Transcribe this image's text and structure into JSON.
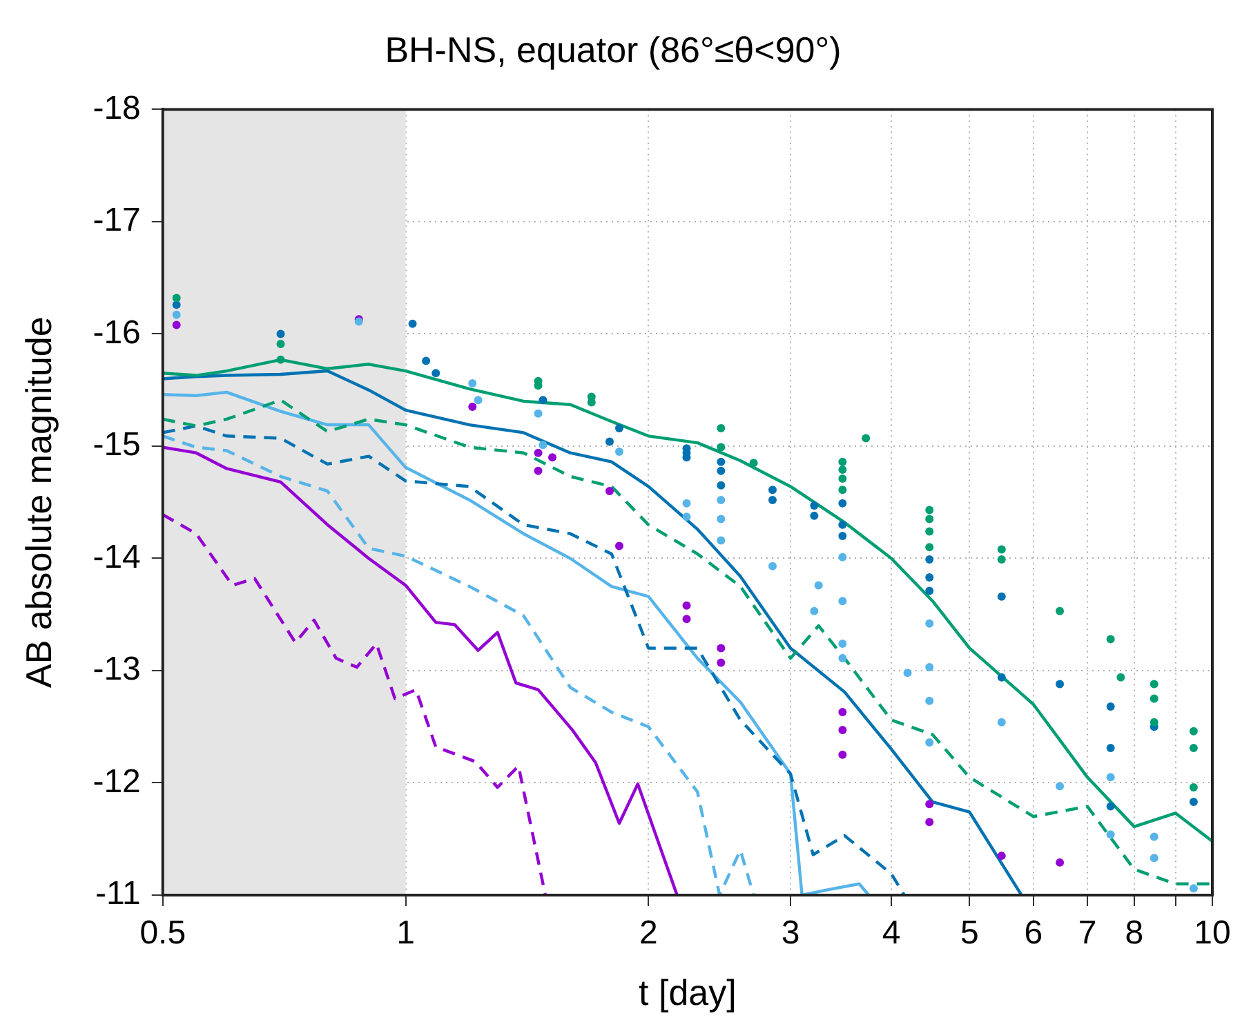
{
  "chart_data": {
    "type": "line",
    "title": "BH-NS, equator (86°≤θ<90°)",
    "xlabel": "t [day]",
    "ylabel": "AB absolute magnitude",
    "log": "x",
    "grid": true,
    "legend": false,
    "xlim": [
      0.5,
      10
    ],
    "xticks": [
      0.5,
      1,
      2,
      3,
      4,
      5,
      6,
      7,
      8,
      {
        "value": 9,
        "label": null
      },
      10
    ],
    "ylim": [
      -11,
      -18
    ],
    "yticks": [
      -18,
      -17,
      -16,
      -15,
      -14,
      -13,
      -12,
      -11
    ],
    "bands": [
      {
        "axis": "x",
        "from": 0.5,
        "to": 1,
        "color": "#e5e5e5"
      }
    ],
    "series": [
      {
        "line_style": "solid",
        "color": "#009e73",
        "x": [
          0.5,
          0.55,
          0.6,
          0.7,
          0.8,
          0.9,
          1,
          1.2,
          1.4,
          1.6,
          1.8,
          2,
          2.3,
          2.6,
          3,
          3.5,
          4,
          4.5,
          5,
          6,
          7,
          8,
          9,
          10
        ],
        "values": [
          -15.65,
          -15.63,
          -15.67,
          -15.77,
          -15.69,
          -15.73,
          -15.67,
          -15.51,
          -15.4,
          -15.37,
          -15.22,
          -15.09,
          -15.03,
          -14.87,
          -14.64,
          -14.32,
          -14.0,
          -13.62,
          -13.2,
          -12.7,
          -12.05,
          -11.61,
          -11.73,
          -11.48
        ]
      },
      {
        "line_style": "dashed",
        "color": "#009e73",
        "x": [
          0.5,
          0.55,
          0.6,
          0.7,
          0.8,
          0.9,
          1,
          1.2,
          1.4,
          1.6,
          1.8,
          2,
          2.3,
          2.6,
          3,
          3.25,
          3.5,
          4,
          4.5,
          5,
          6,
          7,
          8,
          9,
          10
        ],
        "values": [
          -15.24,
          -15.18,
          -15.24,
          -15.41,
          -15.13,
          -15.24,
          -15.19,
          -14.99,
          -14.94,
          -14.73,
          -14.64,
          -14.3,
          -14.04,
          -13.75,
          -13.11,
          -13.4,
          -13.11,
          -12.56,
          -12.43,
          -12.05,
          -11.7,
          -11.79,
          -11.23,
          -11.1,
          -11.1
        ]
      },
      {
        "line_style": "solid",
        "color": "#0072b2",
        "x": [
          0.5,
          0.55,
          0.6,
          0.7,
          0.8,
          0.9,
          1,
          1.2,
          1.4,
          1.6,
          1.8,
          2,
          2.3,
          2.6,
          3,
          3.5,
          4,
          4.5,
          5,
          5.8
        ],
        "values": [
          -15.6,
          -15.62,
          -15.63,
          -15.64,
          -15.67,
          -15.5,
          -15.32,
          -15.19,
          -15.12,
          -14.94,
          -14.86,
          -14.64,
          -14.26,
          -13.84,
          -13.2,
          -12.81,
          -12.3,
          -11.83,
          -11.74,
          -11.0
        ]
      },
      {
        "line_style": "dashed",
        "color": "#0072b2",
        "x": [
          0.5,
          0.55,
          0.6,
          0.7,
          0.8,
          0.9,
          1,
          1.2,
          1.4,
          1.6,
          1.8,
          2,
          2.3,
          2.6,
          3,
          3.2,
          3.5,
          4,
          4.15
        ],
        "values": [
          -15.12,
          -15.18,
          -15.09,
          -15.07,
          -14.84,
          -14.91,
          -14.69,
          -14.64,
          -14.3,
          -14.22,
          -14.04,
          -13.2,
          -13.2,
          -12.56,
          -12.08,
          -11.36,
          -11.53,
          -11.19,
          -11.0
        ]
      },
      {
        "line_style": "solid",
        "color": "#56b4e9",
        "x": [
          0.5,
          0.55,
          0.6,
          0.7,
          0.8,
          0.9,
          1,
          1.2,
          1.4,
          1.6,
          1.8,
          2,
          2.3,
          2.6,
          3,
          3.1,
          3.35,
          3.65,
          3.75
        ],
        "values": [
          -15.46,
          -15.45,
          -15.48,
          -15.31,
          -15.19,
          -15.19,
          -14.81,
          -14.52,
          -14.22,
          -14.0,
          -13.75,
          -13.66,
          -13.11,
          -12.72,
          -12.08,
          -11.0,
          -11.05,
          -11.1,
          -11.0
        ]
      },
      {
        "line_style": "dashed",
        "color": "#56b4e9",
        "x": [
          0.5,
          0.55,
          0.6,
          0.7,
          0.8,
          0.9,
          1,
          1.2,
          1.4,
          1.6,
          1.8,
          2,
          2.3,
          2.45,
          2.6,
          2.7
        ],
        "values": [
          -15.09,
          -14.99,
          -14.96,
          -14.73,
          -14.6,
          -14.09,
          -14.02,
          -13.75,
          -13.49,
          -12.85,
          -12.63,
          -12.5,
          -11.92,
          -11.0,
          -11.4,
          -11.0
        ]
      },
      {
        "line_style": "solid",
        "color": "#9400d3",
        "x": [
          0.5,
          0.55,
          0.6,
          0.7,
          0.8,
          0.9,
          1.0,
          1.09,
          1.15,
          1.23,
          1.3,
          1.37,
          1.46,
          1.61,
          1.72,
          1.84,
          1.94,
          2.17
        ],
        "values": [
          -14.99,
          -14.94,
          -14.8,
          -14.68,
          -14.3,
          -14.0,
          -13.76,
          -13.43,
          -13.41,
          -13.18,
          -13.34,
          -12.89,
          -12.83,
          -12.47,
          -12.18,
          -11.64,
          -11.99,
          -11.0
        ]
      },
      {
        "line_style": "dashed",
        "color": "#9400d3",
        "x": [
          0.5,
          0.55,
          0.61,
          0.65,
          0.73,
          0.77,
          0.82,
          0.87,
          0.92,
          0.97,
          1.03,
          1.09,
          1.22,
          1.3,
          1.38,
          1.49
        ],
        "values": [
          -14.39,
          -14.22,
          -13.76,
          -13.82,
          -13.25,
          -13.45,
          -13.11,
          -13.03,
          -13.24,
          -12.75,
          -12.83,
          -12.32,
          -12.19,
          -11.96,
          -12.15,
          -11.0
        ]
      },
      {
        "type": "scatter",
        "marker": "circle",
        "color": "#009e73",
        "x": [
          0.52,
          0.7,
          0.7,
          1.46,
          1.46,
          1.7,
          1.7,
          2.46,
          2.46,
          2.7,
          3.48,
          3.48,
          3.48,
          3.48,
          3.72,
          4.46,
          4.46,
          4.46,
          4.46,
          5.48,
          5.48,
          6.47,
          7.48,
          7.7,
          8.47,
          8.47,
          8.47,
          9.48,
          9.48,
          9.48
        ],
        "values": [
          -16.32,
          -15.91,
          -15.77,
          -15.58,
          -15.54,
          -15.44,
          -15.39,
          -15.16,
          -14.99,
          -14.85,
          -14.86,
          -14.79,
          -14.71,
          -14.61,
          -15.07,
          -14.43,
          -14.35,
          -14.24,
          -14.1,
          -14.08,
          -13.99,
          -13.53,
          -13.28,
          -12.94,
          -12.88,
          -12.75,
          -12.54,
          -12.46,
          -12.31,
          -11.96
        ]
      },
      {
        "type": "scatter",
        "marker": "circle",
        "color": "#0072b2",
        "x": [
          0.52,
          0.7,
          1.02,
          1.06,
          1.09,
          1.48,
          1.84,
          1.79,
          2.23,
          2.23,
          2.23,
          2.46,
          2.46,
          2.46,
          2.85,
          2.85,
          3.21,
          3.21,
          3.48,
          3.48,
          3.48,
          4.46,
          4.46,
          4.46,
          5.48,
          5.48,
          6.47,
          7.48,
          7.48,
          7.48,
          8.47,
          9.48
        ],
        "values": [
          -16.26,
          -16.0,
          -16.09,
          -15.76,
          -15.65,
          -15.41,
          -15.16,
          -15.04,
          -14.98,
          -14.9,
          -14.94,
          -14.86,
          -14.78,
          -14.65,
          -14.61,
          -14.52,
          -14.47,
          -14.38,
          -14.49,
          -14.3,
          -14.2,
          -13.99,
          -13.83,
          -13.71,
          -13.66,
          -12.94,
          -12.88,
          -12.68,
          -12.31,
          -11.79,
          -12.5,
          -11.83
        ]
      },
      {
        "type": "scatter",
        "marker": "circle",
        "color": "#56b4e9",
        "x": [
          0.52,
          0.875,
          1.21,
          1.23,
          1.46,
          1.48,
          1.84,
          2.23,
          2.23,
          2.46,
          2.46,
          2.46,
          2.85,
          3.25,
          3.21,
          3.48,
          3.48,
          3.48,
          3.48,
          4.19,
          4.46,
          4.46,
          4.46,
          4.46,
          5.48,
          6.47,
          7.48,
          7.48,
          8.47,
          8.47,
          9.48
        ],
        "values": [
          -16.17,
          -16.11,
          -15.56,
          -15.41,
          -15.29,
          -15.01,
          -14.95,
          -14.49,
          -14.37,
          -14.52,
          -14.35,
          -14.16,
          -13.93,
          -13.76,
          -13.53,
          -14.01,
          -13.62,
          -13.24,
          -13.11,
          -12.98,
          -13.42,
          -13.03,
          -12.73,
          -12.36,
          -12.54,
          -11.97,
          -12.05,
          -11.54,
          -11.52,
          -11.33,
          -11.06
        ]
      },
      {
        "type": "scatter",
        "marker": "circle",
        "color": "#9400d3",
        "x": [
          0.52,
          0.875,
          1.21,
          1.46,
          1.46,
          1.52,
          1.79,
          1.84,
          2.23,
          2.23,
          2.46,
          2.46,
          3.48,
          3.48,
          3.48,
          4.46,
          4.46,
          5.48,
          6.47
        ],
        "values": [
          -16.08,
          -16.13,
          -15.35,
          -14.94,
          -14.78,
          -14.9,
          -14.6,
          -14.11,
          -13.58,
          -13.46,
          -13.2,
          -13.07,
          -12.63,
          -12.47,
          -12.25,
          -11.81,
          -11.65,
          -11.35,
          -11.29
        ]
      }
    ]
  }
}
